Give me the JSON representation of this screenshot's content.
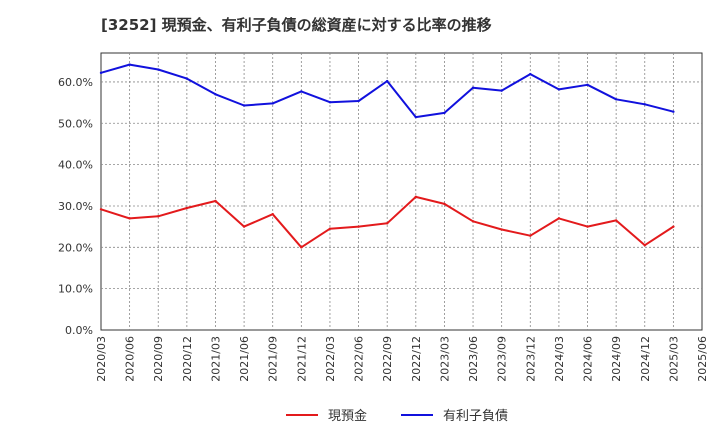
{
  "chart_data": {
    "type": "line",
    "title": "[3252]  現預金、有利子負債の総資産に対する比率の推移",
    "xlabel": "",
    "ylabel": "",
    "ylim": [
      0,
      67
    ],
    "y_ticks": [
      0,
      10,
      20,
      30,
      40,
      50,
      60
    ],
    "y_tick_labels": [
      "0.0%",
      "10.0%",
      "20.0%",
      "30.0%",
      "40.0%",
      "50.0%",
      "60.0%"
    ],
    "grid": true,
    "legend_position": "bottom-center",
    "categories": [
      "2020/03",
      "2020/06",
      "2020/09",
      "2020/12",
      "2021/03",
      "2021/06",
      "2021/09",
      "2021/12",
      "2022/03",
      "2022/06",
      "2022/09",
      "2022/12",
      "2023/03",
      "2023/06",
      "2023/09",
      "2023/12",
      "2024/03",
      "2024/06",
      "2024/09",
      "2024/12",
      "2025/03",
      "2025/06"
    ],
    "series": [
      {
        "name": "現預金",
        "color": "#e31a1c",
        "values": [
          29.2,
          27.0,
          27.5,
          29.5,
          31.2,
          25.0,
          28.0,
          20.0,
          24.5,
          25.0,
          25.8,
          32.2,
          30.5,
          26.3,
          24.3,
          22.8,
          27.0,
          25.0,
          26.5,
          20.5,
          25.0,
          null
        ]
      },
      {
        "name": "有利子負債",
        "color": "#1111dd",
        "values": [
          62.2,
          64.2,
          63.0,
          60.8,
          57.0,
          54.3,
          54.8,
          57.7,
          55.1,
          55.4,
          60.2,
          51.5,
          52.5,
          58.6,
          57.9,
          61.9,
          58.2,
          59.3,
          55.8,
          54.6,
          52.8,
          null
        ]
      }
    ]
  }
}
